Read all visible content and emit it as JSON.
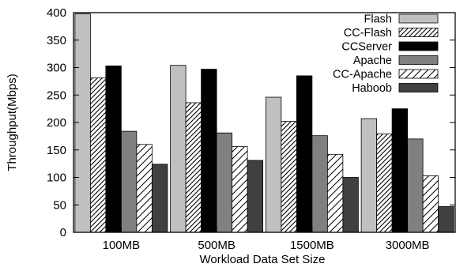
{
  "chart_data": {
    "type": "bar",
    "title": "",
    "xlabel": "Workload Data Set Size",
    "ylabel": "Throughput(Mbps)",
    "ylim": [
      0,
      400
    ],
    "yticks": [
      0,
      50,
      100,
      150,
      200,
      250,
      300,
      350,
      400
    ],
    "categories": [
      "100MB",
      "500MB",
      "1500MB",
      "3000MB"
    ],
    "legend_position": "top-right",
    "grid": false,
    "series": [
      {
        "name": "Flash",
        "values": [
          398,
          304,
          246,
          207
        ],
        "color": "#c0c0c0",
        "pattern": "solid"
      },
      {
        "name": "CC-Flash",
        "values": [
          281,
          236,
          202,
          179
        ],
        "color": "#ffffff",
        "pattern": "dense-hatch"
      },
      {
        "name": "CCServer",
        "values": [
          303,
          297,
          285,
          225
        ],
        "color": "#000000",
        "pattern": "solid"
      },
      {
        "name": "Apache",
        "values": [
          184,
          181,
          176,
          170
        ],
        "color": "#808080",
        "pattern": "solid"
      },
      {
        "name": "CC-Apache",
        "values": [
          160,
          156,
          142,
          103
        ],
        "color": "#ffffff",
        "pattern": "sparse-hatch"
      },
      {
        "name": "Haboob",
        "values": [
          124,
          131,
          100,
          47
        ],
        "color": "#404040",
        "pattern": "solid"
      }
    ]
  }
}
